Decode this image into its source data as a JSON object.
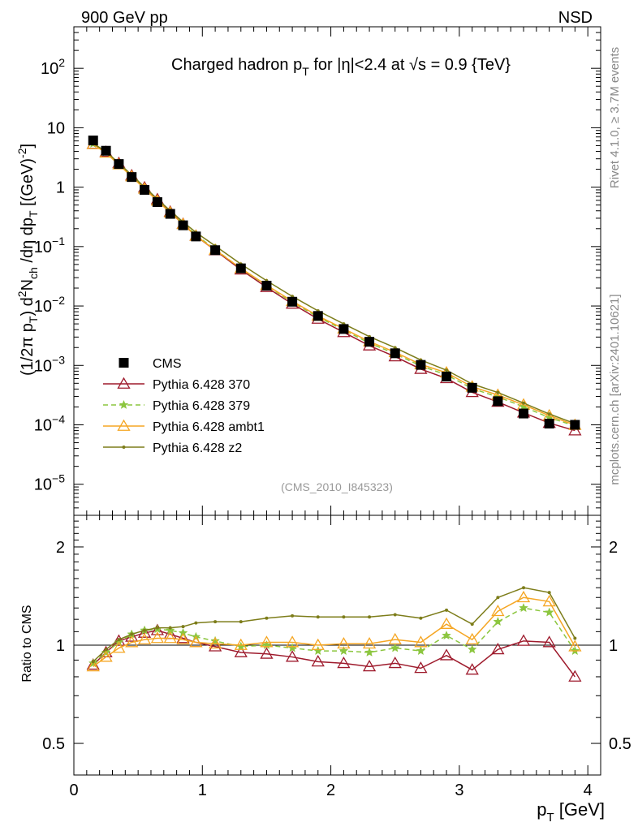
{
  "header": {
    "left": "900 GeV pp",
    "right": "NSD"
  },
  "side_labels": {
    "rivet": "Rivet 4.1.0, ≥ 3.7M events",
    "mcplots": "mcplots.cern.ch [arXiv:2401.10621]"
  },
  "chart_data": {
    "type": "line",
    "title": {
      "pre": "Charged hadron p",
      "sub": "T",
      "mid": " for |η|<2.4 at √s = 0.9 {TeV}"
    },
    "analysis_tag": "(CMS_2010_I845323)",
    "xlabel": {
      "main": "p",
      "sub": "T",
      "unit": " [GeV]"
    },
    "ylabel": "(1/2π pT) d²Nch/dη dpT [(GeV)⁻²]",
    "ratio_ylabel": "Ratio to CMS",
    "xlim": [
      0,
      4.1
    ],
    "ylim": [
      3e-06,
      500
    ],
    "ratio_ylim": [
      0.4,
      2.5
    ],
    "x_ticks": [
      "0",
      "1",
      "2",
      "3",
      "4"
    ],
    "x": [
      0.15,
      0.25,
      0.35,
      0.45,
      0.55,
      0.65,
      0.75,
      0.85,
      0.95,
      1.1,
      1.3,
      1.5,
      1.7,
      1.9,
      2.1,
      2.3,
      2.5,
      2.7,
      2.9,
      3.1,
      3.3,
      3.5,
      3.7,
      3.9
    ],
    "reference": {
      "name": "CMS",
      "values": [
        6.1,
        4.1,
        2.45,
        1.48,
        0.9,
        0.56,
        0.355,
        0.228,
        0.148,
        0.087,
        0.043,
        0.022,
        0.0118,
        0.0068,
        0.0041,
        0.0025,
        0.0016,
        0.00102,
        0.00065,
        0.00042,
        0.00025,
        0.000155,
        0.000105,
        0.0001
      ]
    },
    "series": [
      {
        "name": "Pythia 6.428 370",
        "color": "#9e1a2c",
        "marker": "triangle-open",
        "ratio": [
          0.87,
          0.95,
          1.03,
          1.06,
          1.09,
          1.11,
          1.08,
          1.05,
          1.02,
          0.99,
          0.95,
          0.94,
          0.92,
          0.89,
          0.88,
          0.86,
          0.88,
          0.85,
          0.93,
          0.84,
          0.97,
          1.03,
          1.02,
          0.8
        ]
      },
      {
        "name": "Pythia 6.428 379",
        "color": "#8cc63f",
        "marker": "star",
        "ratio": [
          0.88,
          0.95,
          1.02,
          1.08,
          1.11,
          1.12,
          1.11,
          1.09,
          1.06,
          1.03,
          0.99,
          1.0,
          0.98,
          0.96,
          0.96,
          0.95,
          0.98,
          0.96,
          1.07,
          0.97,
          1.18,
          1.3,
          1.26,
          0.96
        ]
      },
      {
        "name": "Pythia 6.428 ambt1",
        "color": "#f5a623",
        "marker": "triangle-open",
        "ratio": [
          0.86,
          0.92,
          0.98,
          1.02,
          1.04,
          1.05,
          1.05,
          1.04,
          1.02,
          1.01,
          1.0,
          1.02,
          1.02,
          1.0,
          1.01,
          1.01,
          1.04,
          1.02,
          1.16,
          1.04,
          1.27,
          1.4,
          1.36,
          0.99
        ]
      },
      {
        "name": "Pythia 6.428 z2",
        "color": "#7d7d1a",
        "marker": "dot",
        "ratio": [
          0.89,
          0.97,
          1.04,
          1.08,
          1.11,
          1.13,
          1.13,
          1.14,
          1.17,
          1.18,
          1.18,
          1.21,
          1.23,
          1.22,
          1.22,
          1.22,
          1.24,
          1.21,
          1.28,
          1.16,
          1.4,
          1.5,
          1.45,
          1.05
        ]
      }
    ]
  }
}
